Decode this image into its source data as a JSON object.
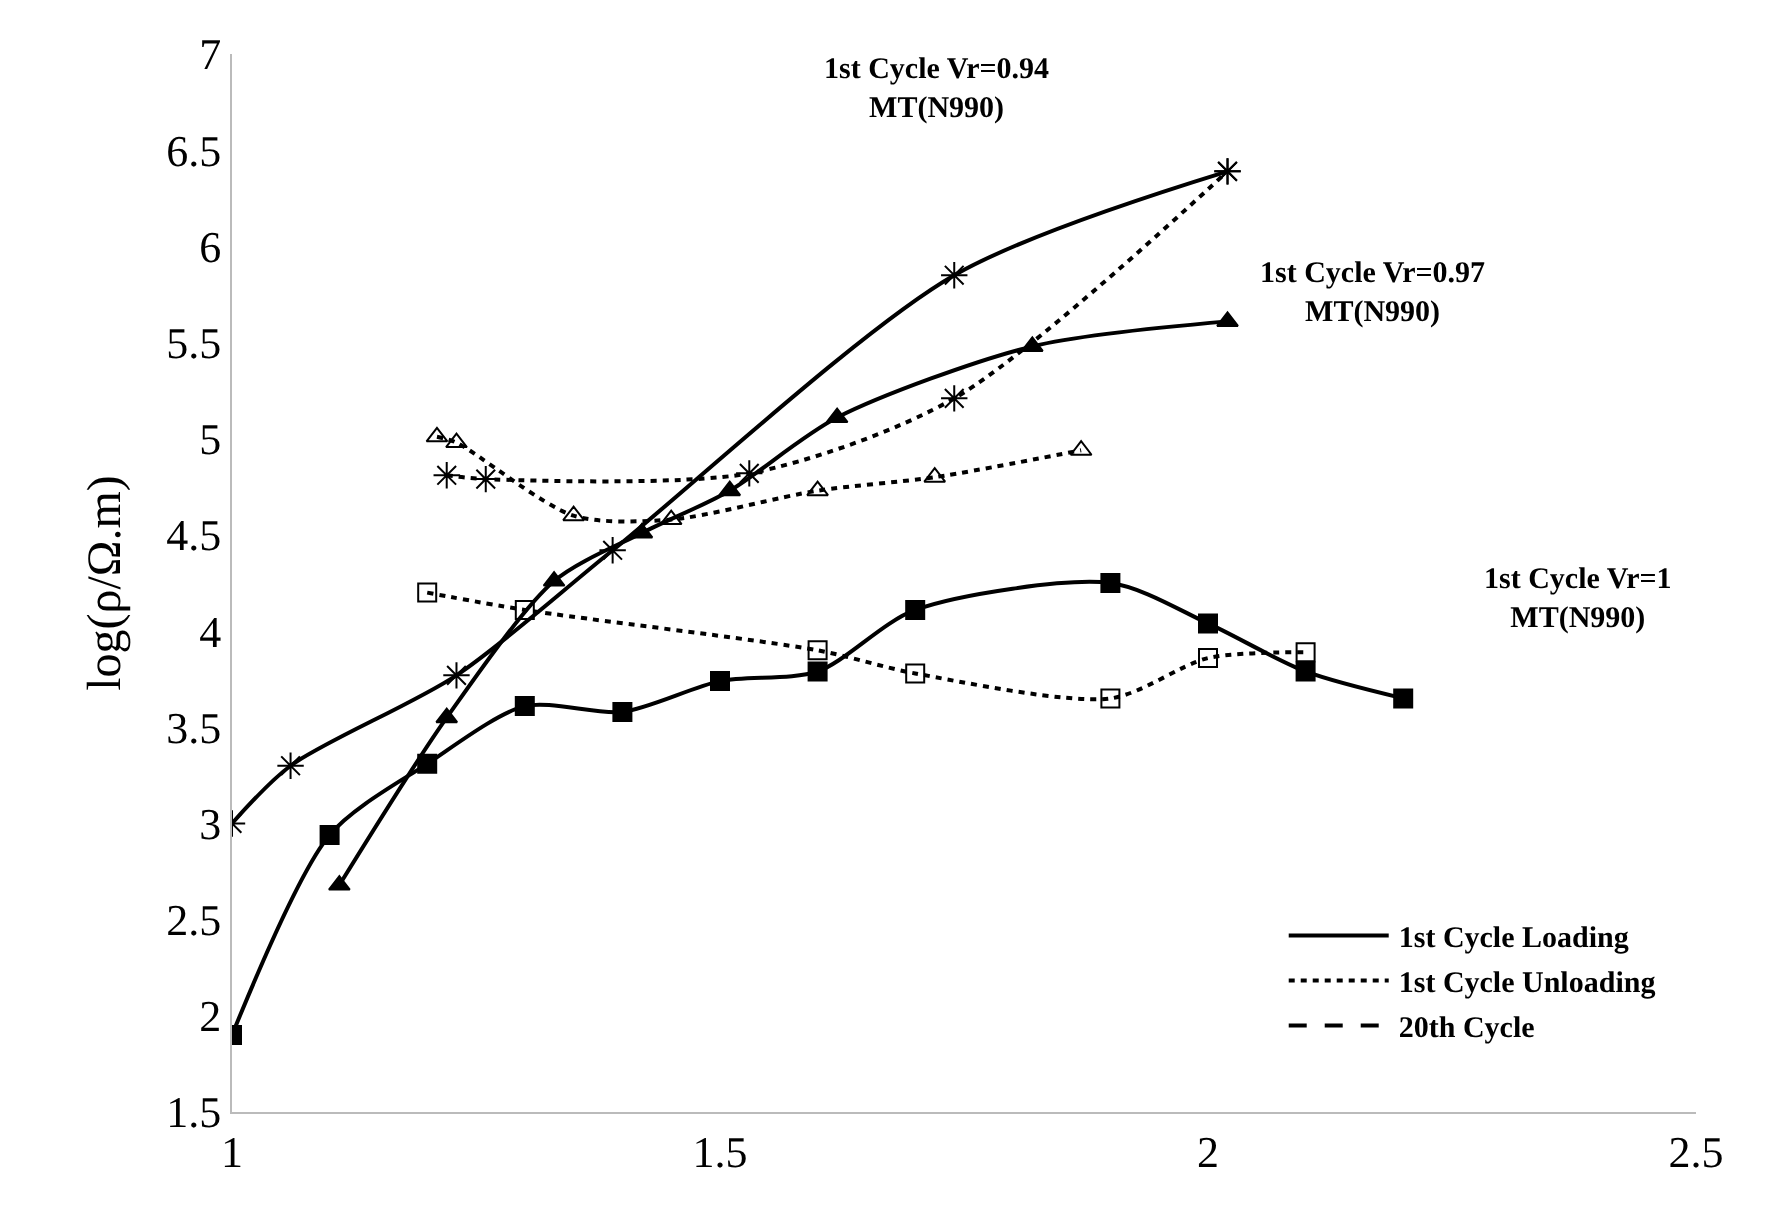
{
  "chart_data": {
    "type": "line",
    "ylabel": "log(ρ/Ω.m)",
    "xlim": [
      1,
      2.5
    ],
    "xticks": [
      1,
      1.5,
      2,
      2.5
    ],
    "ylim": [
      1.5,
      7
    ],
    "yticks": [
      1.5,
      2,
      2.5,
      3,
      3.5,
      4,
      4.5,
      5,
      5.5,
      6,
      6.5,
      7
    ],
    "legend": "bottom right",
    "series": [
      {
        "color": "#000000",
        "line_style": "solid",
        "marker": "square",
        "x": [
          1.0,
          1.1,
          1.2,
          1.3,
          1.4,
          1.5,
          1.6,
          1.7,
          1.9,
          2.0,
          2.1,
          2.2
        ],
        "values": [
          1.9,
          2.94,
          3.31,
          3.61,
          3.58,
          3.74,
          3.79,
          4.11,
          4.25,
          4.04,
          3.79,
          3.65
        ]
      },
      {
        "color": "#000000",
        "line_style": "dotted",
        "marker": "square",
        "x": [
          1.2,
          1.3,
          1.6,
          1.7,
          1.9,
          2.0,
          2.1
        ],
        "values": [
          4.2,
          4.11,
          3.9,
          3.78,
          3.65,
          3.86,
          3.89
        ]
      },
      {
        "color": "#000000",
        "line_style": "solid",
        "marker": "cross",
        "x": [
          1.0,
          1.06,
          1.23,
          1.39,
          1.74,
          2.02
        ],
        "values": [
          3.0,
          3.3,
          3.77,
          4.42,
          5.85,
          6.39
        ]
      },
      {
        "color": "#000000",
        "line_style": "dotted",
        "marker": "cross",
        "x": [
          1.22,
          1.26,
          1.53,
          1.74,
          2.02
        ],
        "values": [
          4.81,
          4.79,
          4.82,
          5.21,
          6.39
        ]
      },
      {
        "color": "#000000",
        "line_style": "solid",
        "marker": "triangle",
        "x": [
          1.11,
          1.22,
          1.33,
          1.42,
          1.51,
          1.62,
          1.82,
          2.02
        ],
        "values": [
          2.68,
          3.55,
          4.26,
          4.51,
          4.73,
          5.11,
          5.48,
          5.61
        ]
      },
      {
        "color": "#000000",
        "line_style": "dotted",
        "marker": "triangle",
        "x": [
          1.21,
          1.23,
          1.35,
          1.45,
          1.6,
          1.72,
          1.87
        ],
        "values": [
          5.01,
          4.98,
          4.6,
          4.58,
          4.73,
          4.8,
          4.94
        ]
      },
      {
        "name": "1st Cycle Loading",
        "color": "#000000",
        "line_style": "solid",
        "marker": "none",
        "values": [
          null
        ]
      },
      {
        "name": "1st Cycle Unloading",
        "color": "#000000",
        "line_style": "dotted",
        "marker": "none",
        "values": [
          null
        ]
      },
      {
        "name": "20th Cycle",
        "color": "#000000",
        "line_style": "dashed",
        "marker": "none",
        "values": [
          null
        ]
      }
    ],
    "annotations": [
      "1st Cycle Vr=0.94\nMT(N990)",
      "1st Cycle Vr=0.97\nMT(N990)",
      "1st Cycle Vr=1\nMT(N990)"
    ]
  }
}
